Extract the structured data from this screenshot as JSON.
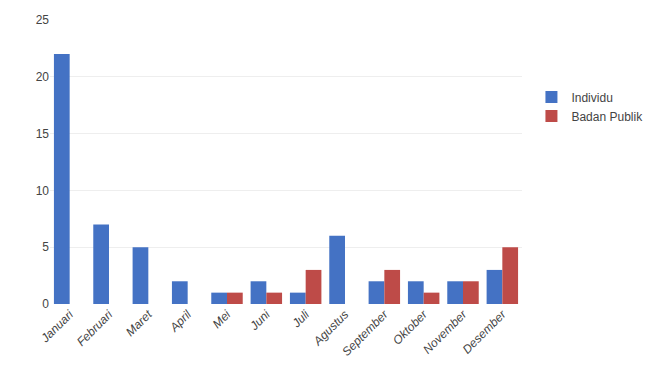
{
  "chart_data": {
    "type": "bar",
    "categories": [
      "Januari",
      "Februari",
      "Maret",
      "April",
      "Mei",
      "Juni",
      "Juli",
      "Agustus",
      "September",
      "Oktober",
      "November",
      "Desember"
    ],
    "series": [
      {
        "name": "Individu",
        "color": "#4472C4",
        "values": [
          22,
          7,
          5,
          2,
          1,
          2,
          1,
          6,
          2,
          2,
          2,
          3
        ]
      },
      {
        "name": "Badan Publik",
        "color": "#BE4B48",
        "values": [
          0,
          0,
          0,
          0,
          1,
          1,
          3,
          0,
          3,
          1,
          2,
          5
        ]
      }
    ],
    "ylim": [
      0,
      25
    ],
    "yticks": [
      0,
      5,
      10,
      15,
      20,
      25
    ],
    "grid": true,
    "legend": "right"
  }
}
